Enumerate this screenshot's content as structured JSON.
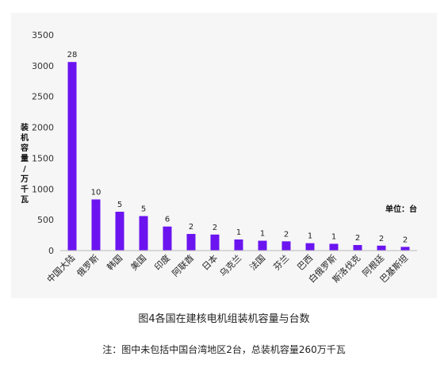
{
  "chart_data": {
    "type": "bar",
    "categories": [
      "中国大陆",
      "俄罗斯",
      "韩国",
      "美国",
      "印度",
      "阿联酋",
      "日本",
      "乌克兰",
      "法国",
      "芬兰",
      "巴西",
      "白俄罗斯",
      "斯洛伐克",
      "阿根廷",
      "巴基斯坦"
    ],
    "series": [
      {
        "values": [
          3060,
          830,
          630,
          560,
          390,
          270,
          260,
          180,
          160,
          150,
          120,
          110,
          90,
          80,
          60
        ],
        "data_labels": [
          "28",
          "10",
          "5",
          "5",
          "6",
          "2",
          "2",
          "1",
          "1",
          "2",
          "1",
          "1",
          "2",
          "2",
          "2"
        ]
      }
    ],
    "ylabel": "装机容量/万千瓦",
    "ylim": [
      0,
      3500
    ],
    "yticks": [
      0,
      500,
      1000,
      1500,
      2000,
      2500,
      3000,
      3500
    ],
    "unit_note": "单位：台",
    "bar_color": "#6b14f0",
    "grid": false
  },
  "caption": "图4各国在建核电机组装机容量与台数",
  "note": "注：图中未包括中国台湾地区2台，总装机容量260万千瓦"
}
